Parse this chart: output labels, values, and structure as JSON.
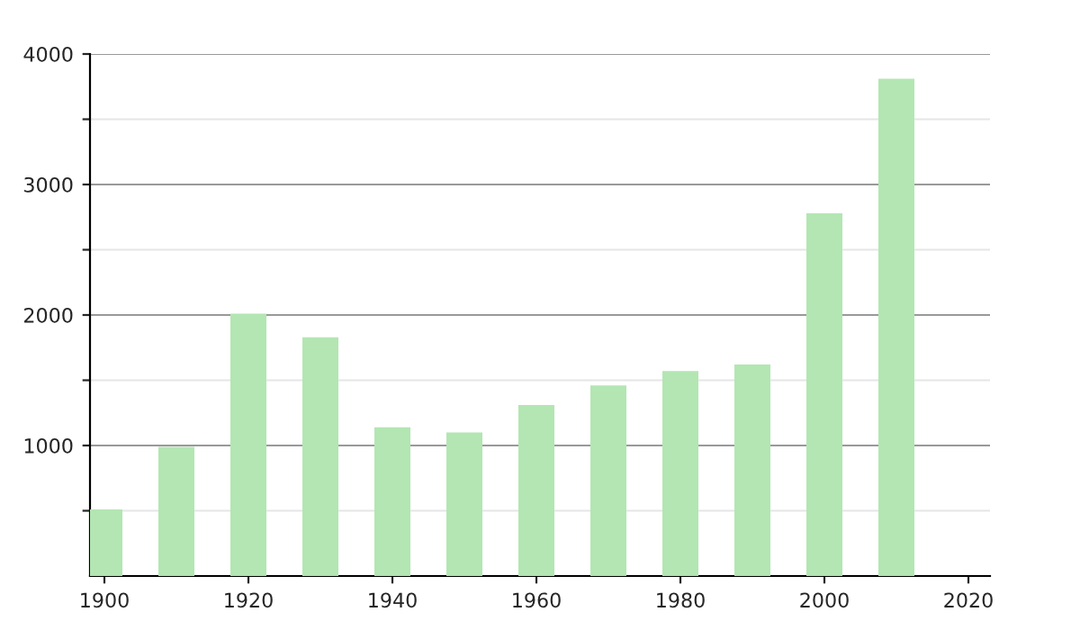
{
  "chart_data": {
    "type": "bar",
    "x": [
      1900,
      1910,
      1920,
      1930,
      1940,
      1950,
      1960,
      1970,
      1980,
      1990,
      2000,
      2010
    ],
    "values": [
      510,
      990,
      2010,
      1830,
      1140,
      1100,
      1310,
      1460,
      1570,
      1620,
      2780,
      3810
    ],
    "color": "#b3e6b3",
    "xlim": [
      1898,
      2023
    ],
    "xticks": [
      1900,
      1920,
      1940,
      1960,
      1980,
      2000,
      2020
    ],
    "ylim": [
      0,
      4000
    ],
    "yticks": [
      {
        "value": 500,
        "label": null
      },
      1000,
      {
        "value": 1500,
        "label": null
      },
      2000,
      {
        "value": 2500,
        "label": null
      },
      3000,
      {
        "value": 3500,
        "label": null
      },
      4000
    ],
    "grid": "y"
  }
}
